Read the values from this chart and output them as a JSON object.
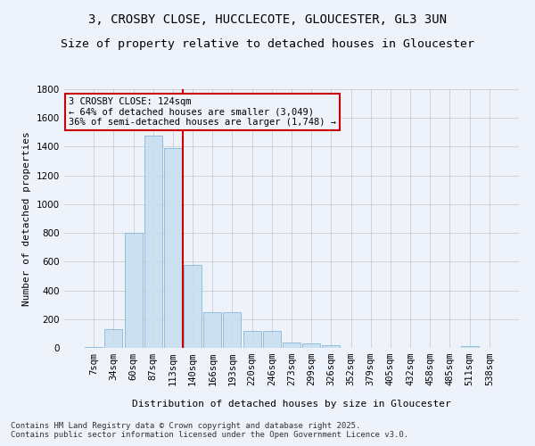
{
  "title": "3, CROSBY CLOSE, HUCCLECOTE, GLOUCESTER, GL3 3UN",
  "subtitle": "Size of property relative to detached houses in Gloucester",
  "xlabel": "Distribution of detached houses by size in Gloucester",
  "ylabel": "Number of detached properties",
  "bar_labels": [
    "7sqm",
    "34sqm",
    "60sqm",
    "87sqm",
    "113sqm",
    "140sqm",
    "166sqm",
    "193sqm",
    "220sqm",
    "246sqm",
    "273sqm",
    "299sqm",
    "326sqm",
    "352sqm",
    "379sqm",
    "405sqm",
    "432sqm",
    "458sqm",
    "485sqm",
    "511sqm",
    "538sqm"
  ],
  "bar_heights": [
    7,
    130,
    800,
    1480,
    1390,
    575,
    250,
    250,
    115,
    115,
    35,
    30,
    20,
    0,
    0,
    0,
    0,
    0,
    0,
    10,
    0
  ],
  "bar_color": "#c5dff0",
  "bar_edgecolor": "#7bafd4",
  "bar_alpha": 0.85,
  "vline_x_index": 4,
  "vline_color": "#cc0000",
  "ylim": [
    0,
    1800
  ],
  "yticks": [
    0,
    200,
    400,
    600,
    800,
    1000,
    1200,
    1400,
    1600,
    1800
  ],
  "annotation_title": "3 CROSBY CLOSE: 124sqm",
  "annotation_line1": "← 64% of detached houses are smaller (3,049)",
  "annotation_line2": "36% of semi-detached houses are larger (1,748) →",
  "annotation_box_color": "#cc0000",
  "footnote1": "Contains HM Land Registry data © Crown copyright and database right 2025.",
  "footnote2": "Contains public sector information licensed under the Open Government Licence v3.0.",
  "grid_color": "#cccccc",
  "bg_color": "#eef2fa",
  "title_fontsize": 10,
  "subtitle_fontsize": 9.5,
  "axis_label_fontsize": 8,
  "tick_fontsize": 7.5,
  "annotation_fontsize": 7.5,
  "footnote_fontsize": 6.5
}
